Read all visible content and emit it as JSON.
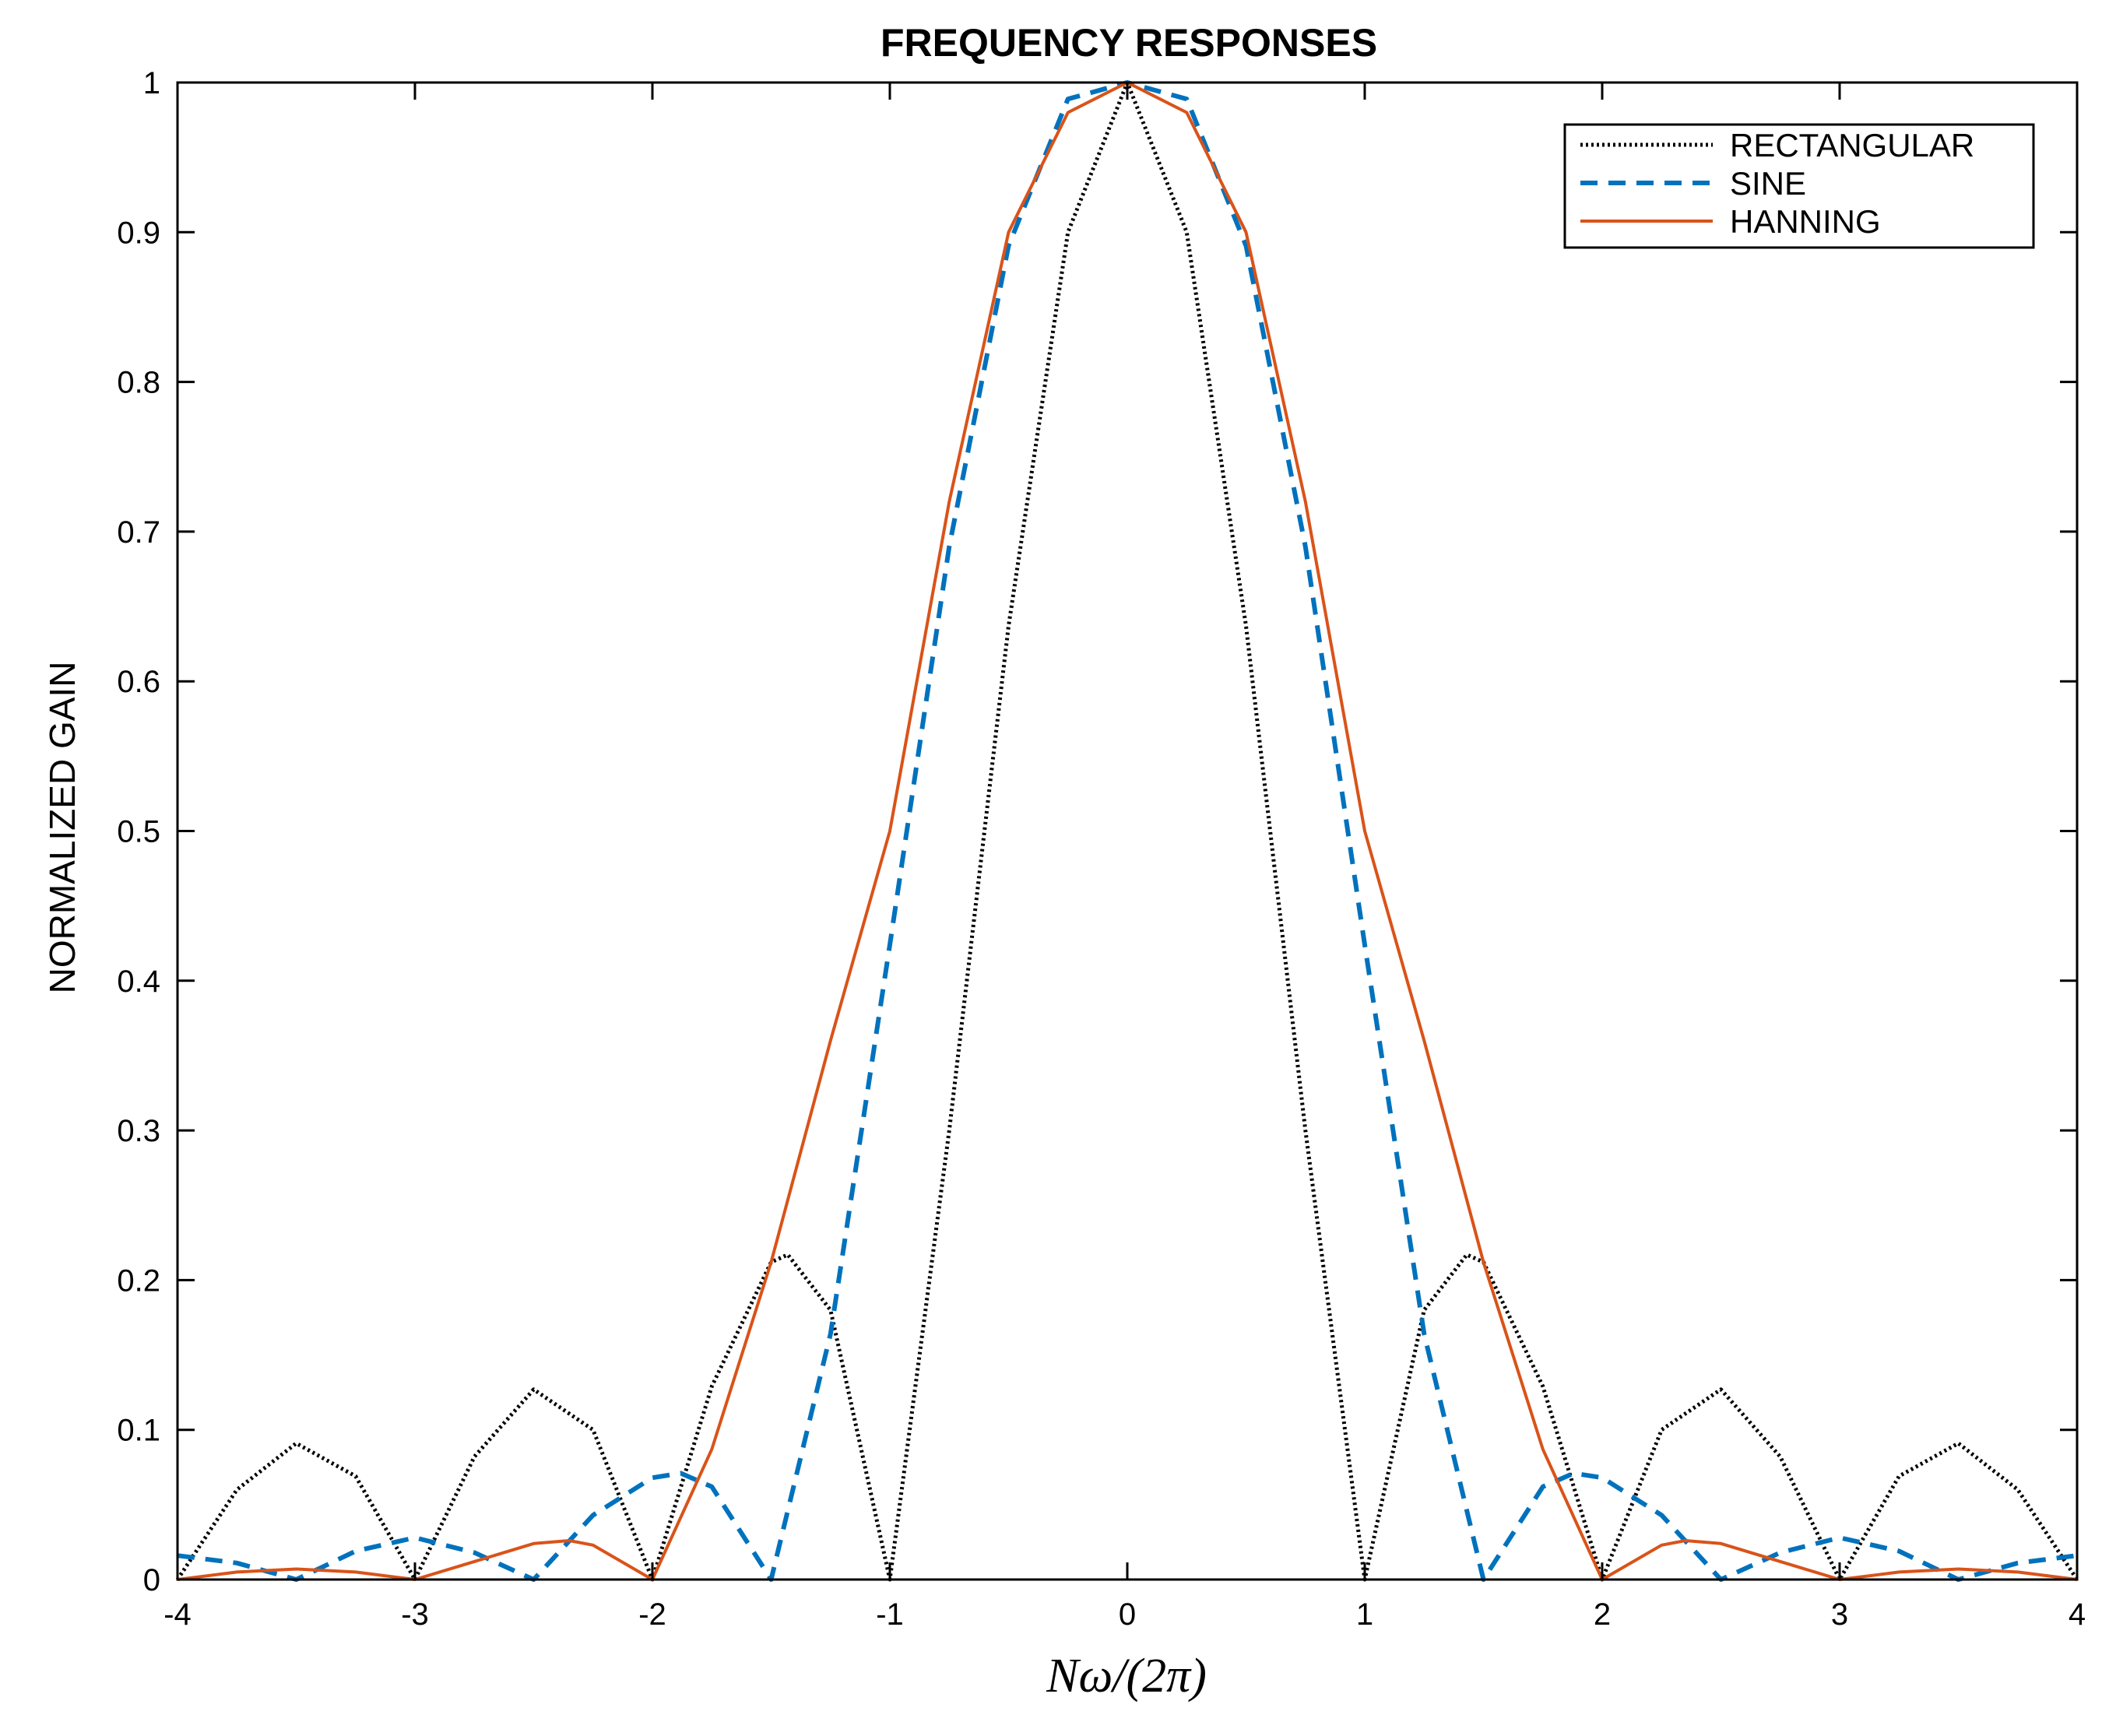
{
  "chart_data": {
    "type": "line",
    "title": "FREQUENCY RESPONSES",
    "xlabel": "Nω/(2π)",
    "ylabel": "NORMALIZED GAIN",
    "xlim": [
      -4,
      4
    ],
    "ylim": [
      0,
      1
    ],
    "x_ticks": [
      -4,
      -3,
      -2,
      -1,
      0,
      1,
      2,
      3,
      4
    ],
    "y_ticks": [
      0,
      0.1,
      0.2,
      0.3,
      0.4,
      0.5,
      0.6,
      0.7,
      0.8,
      0.9,
      1
    ],
    "x_tick_labels": [
      "-4",
      "-3",
      "-2",
      "-1",
      "0",
      "1",
      "2",
      "3",
      "4"
    ],
    "y_tick_labels": [
      "0",
      "0.1",
      "0.2",
      "0.3",
      "0.4",
      "0.5",
      "0.6",
      "0.7",
      "0.8",
      "0.9",
      "1"
    ],
    "grid": false,
    "legend_position": "top-right",
    "series": [
      {
        "name": "RECTANGULAR",
        "color": "#000000",
        "style": "dotted",
        "x": [
          -4,
          -3.75,
          -3.5,
          -3.25,
          -3,
          -2.75,
          -2.5,
          -2.25,
          -2,
          -1.75,
          -1.5,
          -1.43,
          -1.25,
          -1,
          -0.75,
          -0.5,
          -0.25,
          0,
          0.25,
          0.5,
          0.75,
          1,
          1.25,
          1.43,
          1.5,
          1.75,
          2,
          2.25,
          2.5,
          2.75,
          3,
          3.25,
          3.5,
          3.75,
          4
        ],
        "y": [
          0,
          0.06,
          0.091,
          0.069,
          0,
          0.082,
          0.127,
          0.1,
          0,
          0.129,
          0.212,
          0.217,
          0.18,
          0,
          0.3,
          0.637,
          0.9,
          1,
          0.9,
          0.637,
          0.3,
          0,
          0.18,
          0.217,
          0.212,
          0.129,
          0,
          0.1,
          0.127,
          0.082,
          0,
          0.069,
          0.091,
          0.06,
          0
        ]
      },
      {
        "name": "SINE",
        "color": "#0072bd",
        "style": "dashed",
        "x": [
          -4,
          -3.75,
          -3.5,
          -3.25,
          -3,
          -2.75,
          -2.5,
          -2.25,
          -2,
          -1.88,
          -1.75,
          -1.5,
          -1.25,
          -1,
          -0.75,
          -0.5,
          -0.25,
          0,
          0.25,
          0.5,
          0.75,
          1,
          1.25,
          1.5,
          1.75,
          1.88,
          2,
          2.25,
          2.5,
          2.75,
          3,
          3.25,
          3.5,
          3.75,
          4
        ],
        "y": [
          0.016,
          0.011,
          0,
          0.019,
          0.028,
          0.018,
          0,
          0.043,
          0.068,
          0.071,
          0.062,
          0,
          0.164,
          0.424,
          0.69,
          0.891,
          0.989,
          1,
          0.989,
          0.891,
          0.69,
          0.424,
          0.164,
          0,
          0.062,
          0.071,
          0.068,
          0.043,
          0,
          0.018,
          0.028,
          0.019,
          0,
          0.011,
          0.016
        ]
      },
      {
        "name": "HANNING",
        "color": "#d95319",
        "style": "solid",
        "x": [
          -4,
          -3.75,
          -3.5,
          -3.25,
          -3,
          -2.75,
          -2.5,
          -2.35,
          -2.25,
          -2,
          -1.75,
          -1.5,
          -1.25,
          -1,
          -0.75,
          -0.5,
          -0.25,
          0,
          0.25,
          0.5,
          0.75,
          1,
          1.25,
          1.5,
          1.75,
          2,
          2.25,
          2.35,
          2.5,
          2.75,
          3,
          3.25,
          3.5,
          3.75,
          4
        ],
        "y": [
          0,
          0.005,
          0.007,
          0.005,
          0,
          0.012,
          0.024,
          0.026,
          0.023,
          0,
          0.087,
          0.212,
          0.36,
          0.5,
          0.72,
          0.9,
          0.98,
          1,
          0.98,
          0.9,
          0.72,
          0.5,
          0.36,
          0.212,
          0.087,
          0,
          0.023,
          0.026,
          0.024,
          0.012,
          0,
          0.005,
          0.007,
          0.005,
          0
        ]
      }
    ]
  }
}
